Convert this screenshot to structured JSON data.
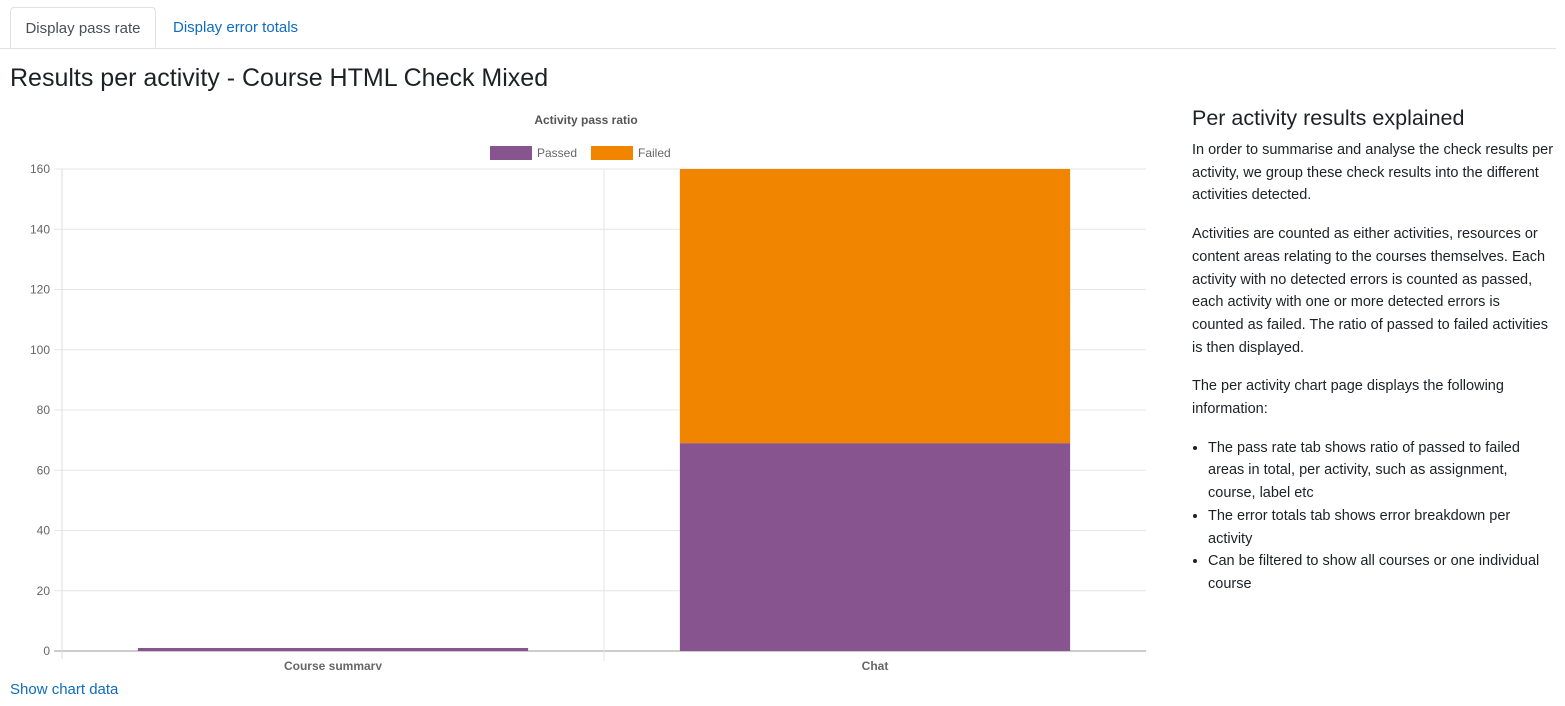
{
  "tabs": [
    {
      "label": "Display pass rate",
      "active": true
    },
    {
      "label": "Display error totals",
      "active": false
    }
  ],
  "page_title": "Results per activity - Course HTML Check Mixed",
  "show_chart_data_link": "Show chart data",
  "explanation": {
    "heading": "Per activity results explained",
    "paragraphs": [
      "In order to summarise and analyse the check results per activity, we group these check results into the different activities detected.",
      "Activities are counted as either activities, resources or content areas relating to the courses themselves. Each activity with no detected errors is counted as passed, each activity with one or more detected errors is counted as failed. The ratio of passed to failed activities is then displayed.",
      "The per activity chart page displays the following information:"
    ],
    "bullets": [
      "The pass rate tab shows ratio of passed to failed areas in total, per activity, such as assignment, course, label etc",
      "The error totals tab shows error breakdown per activity",
      "Can be filtered to show all courses or one individual course"
    ]
  },
  "colors": {
    "passed": "#88548f",
    "failed": "#f28500",
    "link": "#0f6cbf",
    "grid": "#e6e6e6"
  },
  "chart_data": {
    "type": "bar",
    "stacked": true,
    "title": "Activity pass ratio",
    "categories": [
      "Course summary",
      "Chat"
    ],
    "series": [
      {
        "name": "Passed",
        "values": [
          1,
          69
        ]
      },
      {
        "name": "Failed",
        "values": [
          0,
          91
        ]
      }
    ],
    "ylim": [
      0,
      160
    ],
    "yticks": [
      0,
      20,
      40,
      60,
      80,
      100,
      120,
      140,
      160
    ],
    "legend": "top",
    "grid": true
  }
}
